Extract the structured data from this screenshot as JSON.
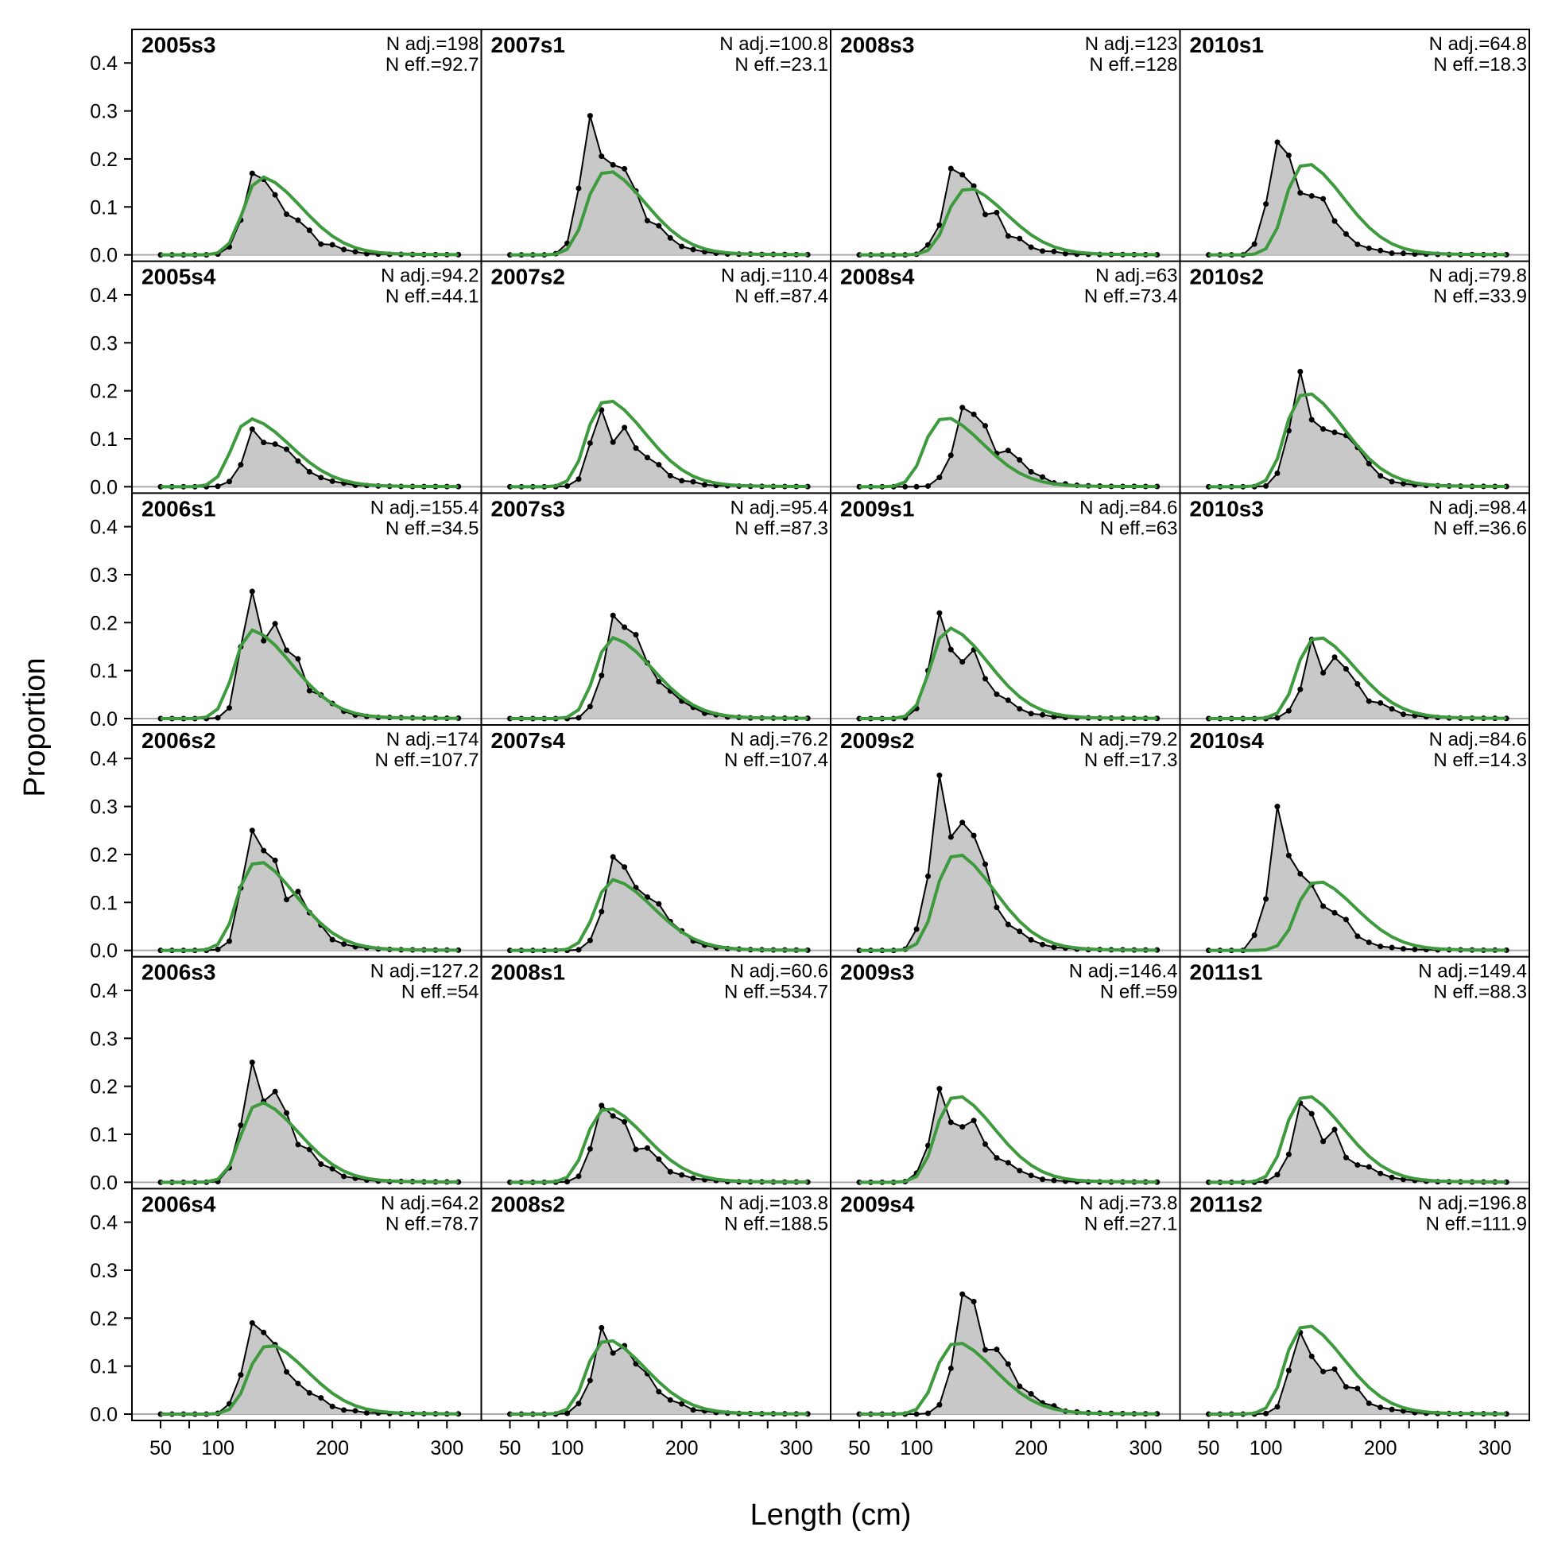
{
  "chart_data": {
    "type": "area",
    "title": "",
    "xlabel": "Length (cm)",
    "ylabel": "Proportion",
    "xlim": [
      25,
      330
    ],
    "ylim": [
      0,
      0.47
    ],
    "x_ticks": [
      50,
      100,
      200,
      300
    ],
    "x_minor_ticks": [
      50,
      75,
      100,
      125,
      150,
      175,
      200,
      225,
      250,
      275,
      300
    ],
    "y_ticks": [
      "0.0",
      "0.1",
      "0.2",
      "0.3",
      "0.4"
    ],
    "grid": false,
    "layout": {
      "rows": 6,
      "cols": 4,
      "order": "column-major"
    },
    "colors": {
      "observed_fill": "#c8c8c8",
      "observed_line": "#000000",
      "expected_line": "#3d9a3d",
      "zero_line": "#aaaaaa"
    },
    "panels": [
      {
        "label": "2005s3",
        "n_adj": "N adj.=198",
        "n_eff": "N eff.=92.7"
      },
      {
        "label": "2005s4",
        "n_adj": "N adj.=94.2",
        "n_eff": "N eff.=44.1"
      },
      {
        "label": "2006s1",
        "n_adj": "N adj.=155.4",
        "n_eff": "N eff.=34.5"
      },
      {
        "label": "2006s2",
        "n_adj": "N adj.=174",
        "n_eff": "N eff.=107.7"
      },
      {
        "label": "2006s3",
        "n_adj": "N adj.=127.2",
        "n_eff": "N eff.=54"
      },
      {
        "label": "2006s4",
        "n_adj": "N adj.=64.2",
        "n_eff": "N eff.=78.7"
      },
      {
        "label": "2007s1",
        "n_adj": "N adj.=100.8",
        "n_eff": "N eff.=23.1"
      },
      {
        "label": "2007s2",
        "n_adj": "N adj.=110.4",
        "n_eff": "N eff.=87.4"
      },
      {
        "label": "2007s3",
        "n_adj": "N adj.=95.4",
        "n_eff": "N eff.=87.3"
      },
      {
        "label": "2007s4",
        "n_adj": "N adj.=76.2",
        "n_eff": "N eff.=107.4"
      },
      {
        "label": "2008s1",
        "n_adj": "N adj.=60.6",
        "n_eff": "N eff.=534.7"
      },
      {
        "label": "2008s2",
        "n_adj": "N adj.=103.8",
        "n_eff": "N eff.=188.5"
      },
      {
        "label": "2008s3",
        "n_adj": "N adj.=123",
        "n_eff": "N eff.=128"
      },
      {
        "label": "2008s4",
        "n_adj": "N adj.=63",
        "n_eff": "N eff.=73.4"
      },
      {
        "label": "2009s1",
        "n_adj": "N adj.=84.6",
        "n_eff": "N eff.=63"
      },
      {
        "label": "2009s2",
        "n_adj": "N adj.=79.2",
        "n_eff": "N eff.=17.3"
      },
      {
        "label": "2009s3",
        "n_adj": "N adj.=146.4",
        "n_eff": "N eff.=59"
      },
      {
        "label": "2009s4",
        "n_adj": "N adj.=73.8",
        "n_eff": "N eff.=27.1"
      },
      {
        "label": "2010s1",
        "n_adj": "N adj.=64.8",
        "n_eff": "N eff.=18.3"
      },
      {
        "label": "2010s2",
        "n_adj": "N adj.=79.8",
        "n_eff": "N eff.=33.9"
      },
      {
        "label": "2010s3",
        "n_adj": "N adj.=98.4",
        "n_eff": "N eff.=36.6"
      },
      {
        "label": "2010s4",
        "n_adj": "N adj.=84.6",
        "n_eff": "N eff.=14.3"
      },
      {
        "label": "2011s1",
        "n_adj": "N adj.=149.4",
        "n_eff": "N eff.=88.3"
      },
      {
        "label": "2011s2",
        "n_adj": "N adj.=196.8",
        "n_eff": "N eff.=111.9"
      }
    ],
    "series_peaks": [
      {
        "label": "2005s3",
        "obs_peak": [
          130,
          0.17
        ],
        "exp_peak": [
          135,
          0.155
        ]
      },
      {
        "label": "2005s4",
        "obs_peak": [
          130,
          0.12
        ],
        "exp_peak": [
          125,
          0.135
        ]
      },
      {
        "label": "2006s1",
        "obs_peak": [
          130,
          0.265
        ],
        "exp_peak": [
          127,
          0.175
        ]
      },
      {
        "label": "2006s2",
        "obs_peak": [
          130,
          0.25
        ],
        "exp_peak": [
          130,
          0.18
        ]
      },
      {
        "label": "2006s3",
        "obs_peak": [
          130,
          0.25
        ],
        "exp_peak": [
          133,
          0.16
        ]
      },
      {
        "label": "2006s4",
        "obs_peak": [
          130,
          0.19
        ],
        "exp_peak": [
          140,
          0.14
        ]
      },
      {
        "label": "2007s1",
        "obs_peak": [
          120,
          0.29
        ],
        "exp_peak": [
          130,
          0.17
        ]
      },
      {
        "label": "2007s2",
        "obs_peak": [
          130,
          0.16
        ],
        "exp_peak": [
          130,
          0.175
        ]
      },
      {
        "label": "2007s3",
        "obs_peak": [
          140,
          0.215
        ],
        "exp_peak": [
          137,
          0.16
        ]
      },
      {
        "label": "2007s4",
        "obs_peak": [
          140,
          0.195
        ],
        "exp_peak": [
          137,
          0.14
        ]
      },
      {
        "label": "2008s1",
        "obs_peak": [
          130,
          0.16
        ],
        "exp_peak": [
          130,
          0.15
        ]
      },
      {
        "label": "2008s2",
        "obs_peak": [
          130,
          0.18
        ],
        "exp_peak": [
          130,
          0.15
        ]
      },
      {
        "label": "2008s3",
        "obs_peak": [
          130,
          0.18
        ],
        "exp_peak": [
          140,
          0.135
        ]
      },
      {
        "label": "2008s4",
        "obs_peak": [
          140,
          0.165
        ],
        "exp_peak": [
          120,
          0.14
        ]
      },
      {
        "label": "2009s1",
        "obs_peak": [
          120,
          0.22
        ],
        "exp_peak": [
          125,
          0.18
        ]
      },
      {
        "label": "2009s2",
        "obs_peak": [
          120,
          0.365
        ],
        "exp_peak": [
          130,
          0.195
        ]
      },
      {
        "label": "2009s3",
        "obs_peak": [
          120,
          0.195
        ],
        "exp_peak": [
          130,
          0.175
        ]
      },
      {
        "label": "2009s4",
        "obs_peak": [
          140,
          0.25
        ],
        "exp_peak": [
          130,
          0.145
        ]
      },
      {
        "label": "2010s1",
        "obs_peak": [
          110,
          0.235
        ],
        "exp_peak": [
          130,
          0.185
        ]
      },
      {
        "label": "2010s2",
        "obs_peak": [
          130,
          0.24
        ],
        "exp_peak": [
          130,
          0.19
        ]
      },
      {
        "label": "2010s3",
        "obs_peak": [
          140,
          0.165
        ],
        "exp_peak": [
          140,
          0.165
        ]
      },
      {
        "label": "2010s4",
        "obs_peak": [
          110,
          0.3
        ],
        "exp_peak": [
          140,
          0.14
        ]
      },
      {
        "label": "2011s1",
        "obs_peak": [
          130,
          0.165
        ],
        "exp_peak": [
          130,
          0.175
        ]
      },
      {
        "label": "2011s2",
        "obs_peak": [
          130,
          0.17
        ],
        "exp_peak": [
          130,
          0.18
        ]
      }
    ]
  }
}
